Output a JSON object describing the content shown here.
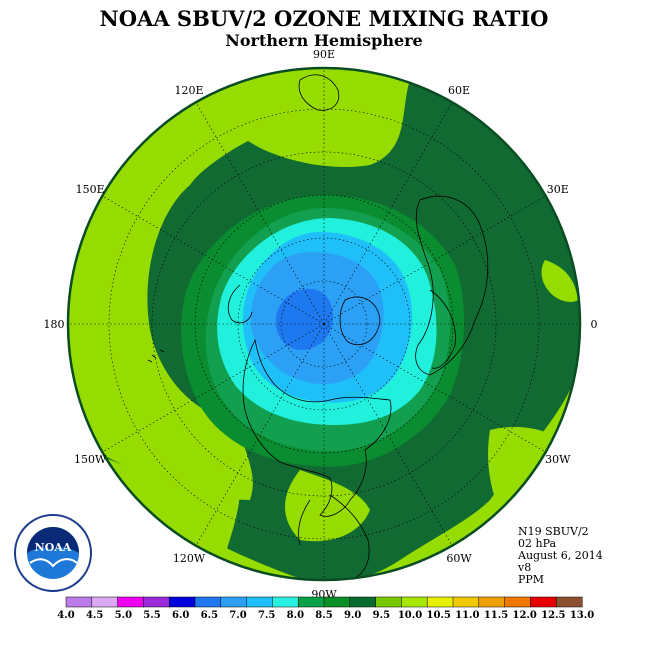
{
  "title": "NOAA SBUV/2 OZONE MIXING RATIO",
  "subtitle": "Northern Hemisphere",
  "longitude_labels": [
    {
      "text": "90E",
      "lon": 90
    },
    {
      "text": "60E",
      "lon": 60
    },
    {
      "text": "30E",
      "lon": 30
    },
    {
      "text": "0",
      "lon": 0
    },
    {
      "text": "30W",
      "lon": -30
    },
    {
      "text": "60W",
      "lon": -60
    },
    {
      "text": "90W",
      "lon": -90
    },
    {
      "text": "120W",
      "lon": -120
    },
    {
      "text": "150W",
      "lon": -150
    },
    {
      "text": "180",
      "lon": 180
    },
    {
      "text": "150E",
      "lon": 150
    },
    {
      "text": "120E",
      "lon": 120
    }
  ],
  "info": {
    "instrument": "N19 SBUV/2",
    "level": "02 hPa",
    "date": "August 6, 2014",
    "version": "v8",
    "units": "PPM"
  },
  "logo": {
    "text": "NOAA",
    "ring_text": "NATIONAL OCEANIC AND ATMOSPHERIC ADMINISTRATION"
  },
  "colorbar": {
    "colors": [
      "#bb7be8",
      "#dca9f2",
      "#f000f0",
      "#9b2bd8",
      "#0000d8",
      "#1e78f0",
      "#2ba0f5",
      "#1fc0fa",
      "#28f0e0",
      "#0aa048",
      "#089028",
      "#086a2c",
      "#78c800",
      "#a6e600",
      "#e6f000",
      "#f0c800",
      "#f0a000",
      "#f07800",
      "#e60000",
      "#8c5030"
    ],
    "labels": [
      "4.0",
      "4.5",
      "5.0",
      "5.5",
      "6.0",
      "6.5",
      "7.0",
      "7.5",
      "8.0",
      "8.5",
      "9.0",
      "9.5",
      "10.0",
      "10.5",
      "11.0",
      "11.5",
      "12.0",
      "12.5",
      "13.0"
    ]
  },
  "map_colors": {
    "outer": "#96dc00",
    "band_9": "#116a32",
    "band_8_5": "#0a8c30",
    "band_8": "#12a050",
    "band_7_5": "#20f0dc",
    "band_7": "#1fc0fa",
    "band_6_5": "#2ba0f5",
    "band_6": "#1e78f0"
  }
}
